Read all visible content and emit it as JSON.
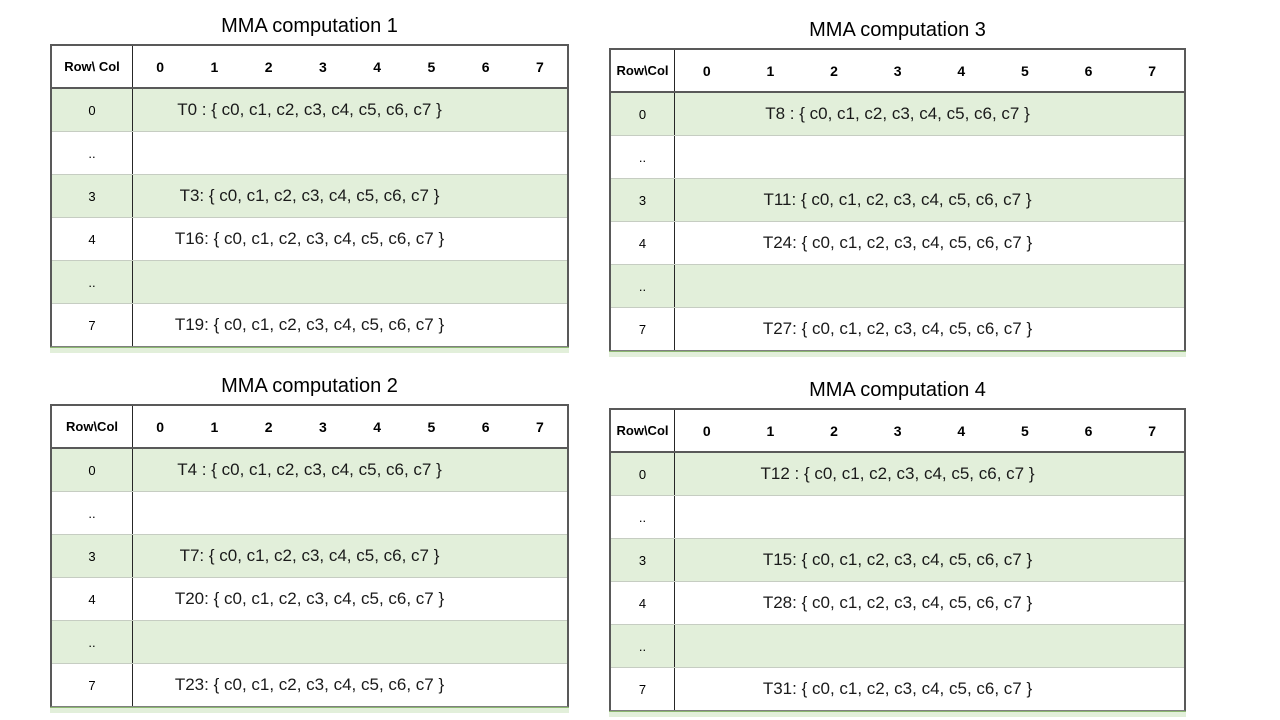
{
  "colors": {
    "band_green": "#e2efda",
    "strip_edge_green": "#8cb871",
    "border_dark": "#595959",
    "separator_black": "#262626",
    "row_divider": "#c6cdc2",
    "text": "#000000"
  },
  "tables": [
    {
      "title": "MMA computation 1",
      "corner_label": "Row\\ Col",
      "col_headers": [
        "0",
        "1",
        "2",
        "3",
        "4",
        "5",
        "6",
        "7"
      ],
      "rows": [
        {
          "label": "0",
          "value": "T0 : { c0, c1, c2, c3, c4, c5, c6, c7 }"
        },
        {
          "label": "..",
          "value": ""
        },
        {
          "label": "3",
          "value": "T3: { c0, c1, c2, c3, c4, c5, c6, c7 }"
        },
        {
          "label": "4",
          "value": "T16: { c0, c1, c2, c3, c4, c5, c6, c7 }"
        },
        {
          "label": "..",
          "value": ""
        },
        {
          "label": "7",
          "value": "T19: { c0, c1, c2, c3, c4, c5, c6, c7 }"
        }
      ]
    },
    {
      "title": "MMA computation 3",
      "corner_label": "Row\\Col",
      "col_headers": [
        "0",
        "1",
        "2",
        "3",
        "4",
        "5",
        "6",
        "7"
      ],
      "rows": [
        {
          "label": "0",
          "value": "T8 : { c0, c1, c2, c3, c4, c5, c6, c7 }"
        },
        {
          "label": "..",
          "value": ""
        },
        {
          "label": "3",
          "value": "T11: { c0, c1, c2, c3, c4, c5, c6, c7 }"
        },
        {
          "label": "4",
          "value": "T24: { c0, c1, c2, c3, c4, c5, c6, c7 }"
        },
        {
          "label": "..",
          "value": ""
        },
        {
          "label": "7",
          "value": "T27: { c0, c1, c2, c3, c4, c5, c6, c7 }"
        }
      ]
    },
    {
      "title": "MMA computation 2",
      "corner_label": "Row\\Col",
      "col_headers": [
        "0",
        "1",
        "2",
        "3",
        "4",
        "5",
        "6",
        "7"
      ],
      "rows": [
        {
          "label": "0",
          "value": "T4 : { c0, c1, c2, c3, c4, c5, c6, c7 }"
        },
        {
          "label": "..",
          "value": ""
        },
        {
          "label": "3",
          "value": "T7: { c0, c1, c2, c3, c4, c5, c6, c7 }"
        },
        {
          "label": "4",
          "value": "T20: { c0, c1, c2, c3, c4, c5, c6, c7 }"
        },
        {
          "label": "..",
          "value": ""
        },
        {
          "label": "7",
          "value": "T23: { c0, c1, c2, c3, c4, c5, c6, c7 }"
        }
      ]
    },
    {
      "title": "MMA computation 4",
      "corner_label": "Row\\Col",
      "col_headers": [
        "0",
        "1",
        "2",
        "3",
        "4",
        "5",
        "6",
        "7"
      ],
      "rows": [
        {
          "label": "0",
          "value": "T12 : { c0, c1, c2, c3, c4, c5, c6, c7 }"
        },
        {
          "label": "..",
          "value": ""
        },
        {
          "label": "3",
          "value": "T15: { c0, c1, c2, c3, c4, c5, c6, c7 }"
        },
        {
          "label": "4",
          "value": "T28: { c0, c1, c2, c3, c4, c5, c6, c7 }"
        },
        {
          "label": "..",
          "value": ""
        },
        {
          "label": "7",
          "value": "T31: { c0, c1, c2, c3, c4, c5, c6, c7 }"
        }
      ]
    }
  ]
}
